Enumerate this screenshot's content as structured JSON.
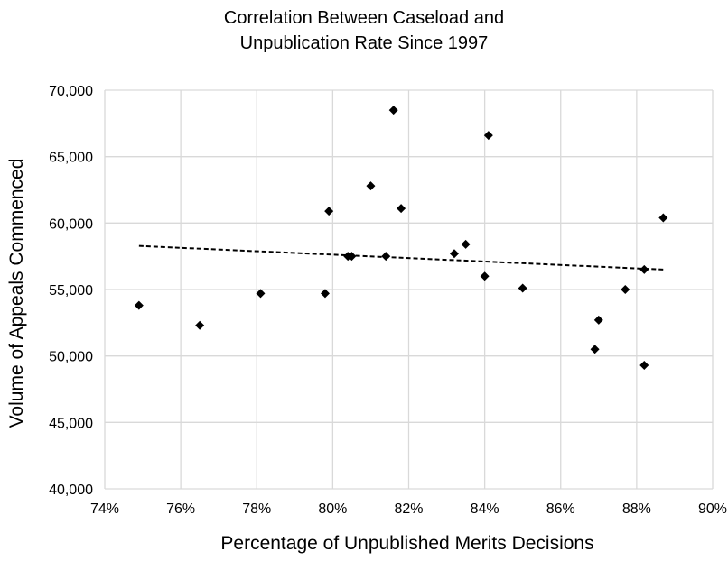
{
  "chart_data": {
    "type": "scatter",
    "title_lines": [
      "Correlation Between Caseload and",
      "Unpublication Rate Since 1997"
    ],
    "xlabel": "Percentage of Unpublished Merits Decisions",
    "ylabel": "Volume of Appeals Commenced",
    "xlim": [
      0.74,
      0.9
    ],
    "ylim": [
      40000,
      70000
    ],
    "x_ticks": [
      0.74,
      0.76,
      0.78,
      0.8,
      0.82,
      0.84,
      0.86,
      0.88,
      0.9
    ],
    "x_tick_labels": [
      "74%",
      "76%",
      "78%",
      "80%",
      "82%",
      "84%",
      "86%",
      "88%",
      "90%"
    ],
    "y_ticks": [
      40000,
      45000,
      50000,
      55000,
      60000,
      65000,
      70000
    ],
    "y_tick_labels": [
      "40,000",
      "45,000",
      "50,000",
      "55,000",
      "60,000",
      "65,000",
      "70,000"
    ],
    "grid": true,
    "legend": "none",
    "marker_color": "#000000",
    "gridline_color": "#d9d9d9",
    "series": [
      {
        "x": [
          0.749,
          0.765,
          0.781,
          0.798,
          0.799,
          0.804,
          0.805,
          0.81,
          0.814,
          0.816,
          0.818,
          0.832,
          0.835,
          0.84,
          0.841,
          0.85,
          0.869,
          0.87,
          0.877,
          0.882,
          0.882,
          0.887
        ],
        "y": [
          53800,
          52300,
          54700,
          54700,
          60900,
          57500,
          57500,
          62800,
          57500,
          68500,
          61100,
          57700,
          58400,
          56000,
          66600,
          55100,
          50500,
          52700,
          55000,
          49300,
          56500,
          60400
        ]
      }
    ],
    "trendline": {
      "style": "dashed",
      "x": [
        0.749,
        0.887
      ],
      "y": [
        58280,
        56500
      ]
    }
  }
}
